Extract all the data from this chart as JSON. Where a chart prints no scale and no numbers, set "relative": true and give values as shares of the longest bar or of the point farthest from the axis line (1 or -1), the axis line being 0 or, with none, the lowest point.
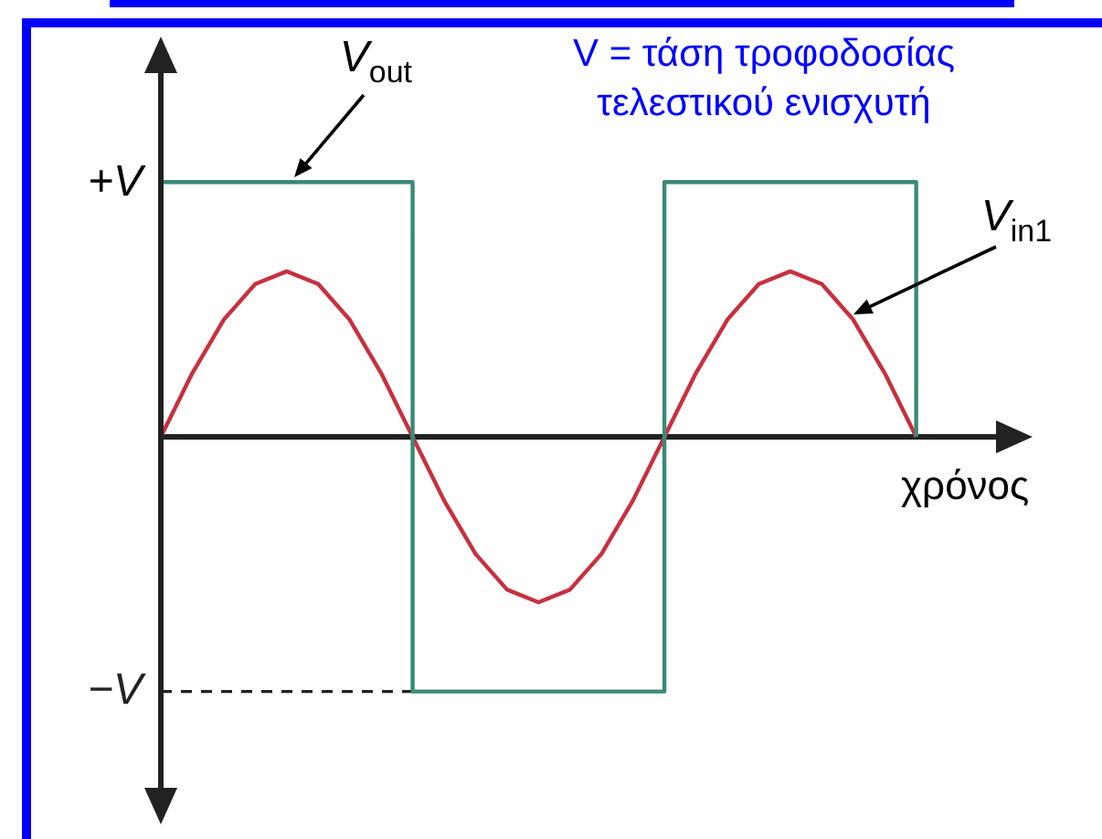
{
  "chart_data": {
    "type": "line",
    "xlabel": "χρόνος",
    "annotations": [
      "V = τάση τροφοδοσίας τελεστικού ενισχυτή",
      "+V"
    ],
    "categories": [
      null,
      null,
      null,
      null,
      null,
      null,
      null,
      null,
      null,
      null,
      null,
      null,
      null,
      null,
      null,
      null,
      null,
      null,
      null,
      null,
      null,
      null,
      null,
      null,
      null,
      null,
      null,
      null
    ],
    "relative": true,
    "ref_lines": [
      {
        "axis": "y",
        "value": -1,
        "label": "−V",
        "color": "#222222",
        "line_style": "dashed"
      }
    ],
    "series": [
      {
        "name": "V$_{out}$",
        "type": "step",
        "color": "#3a8a78",
        "values": [
          1,
          1,
          1,
          1,
          1,
          1,
          1,
          1,
          -1,
          -1,
          -1,
          -1,
          -1,
          -1,
          -1,
          -1,
          1,
          1,
          1,
          1,
          1,
          1,
          1,
          1,
          0,
          null,
          null,
          null
        ]
      },
      {
        "name": "V$_{in1}$",
        "type": "line",
        "color": "#c8303f",
        "values": [
          0,
          0.25,
          0.46,
          0.6,
          0.65,
          0.6,
          0.46,
          0.25,
          0,
          -0.25,
          -0.46,
          -0.6,
          -0.65,
          -0.6,
          -0.46,
          -0.25,
          0,
          0.25,
          0.46,
          0.6,
          0.65,
          0.6,
          0.46,
          0.25,
          0,
          null,
          null,
          null
        ]
      }
    ]
  }
}
